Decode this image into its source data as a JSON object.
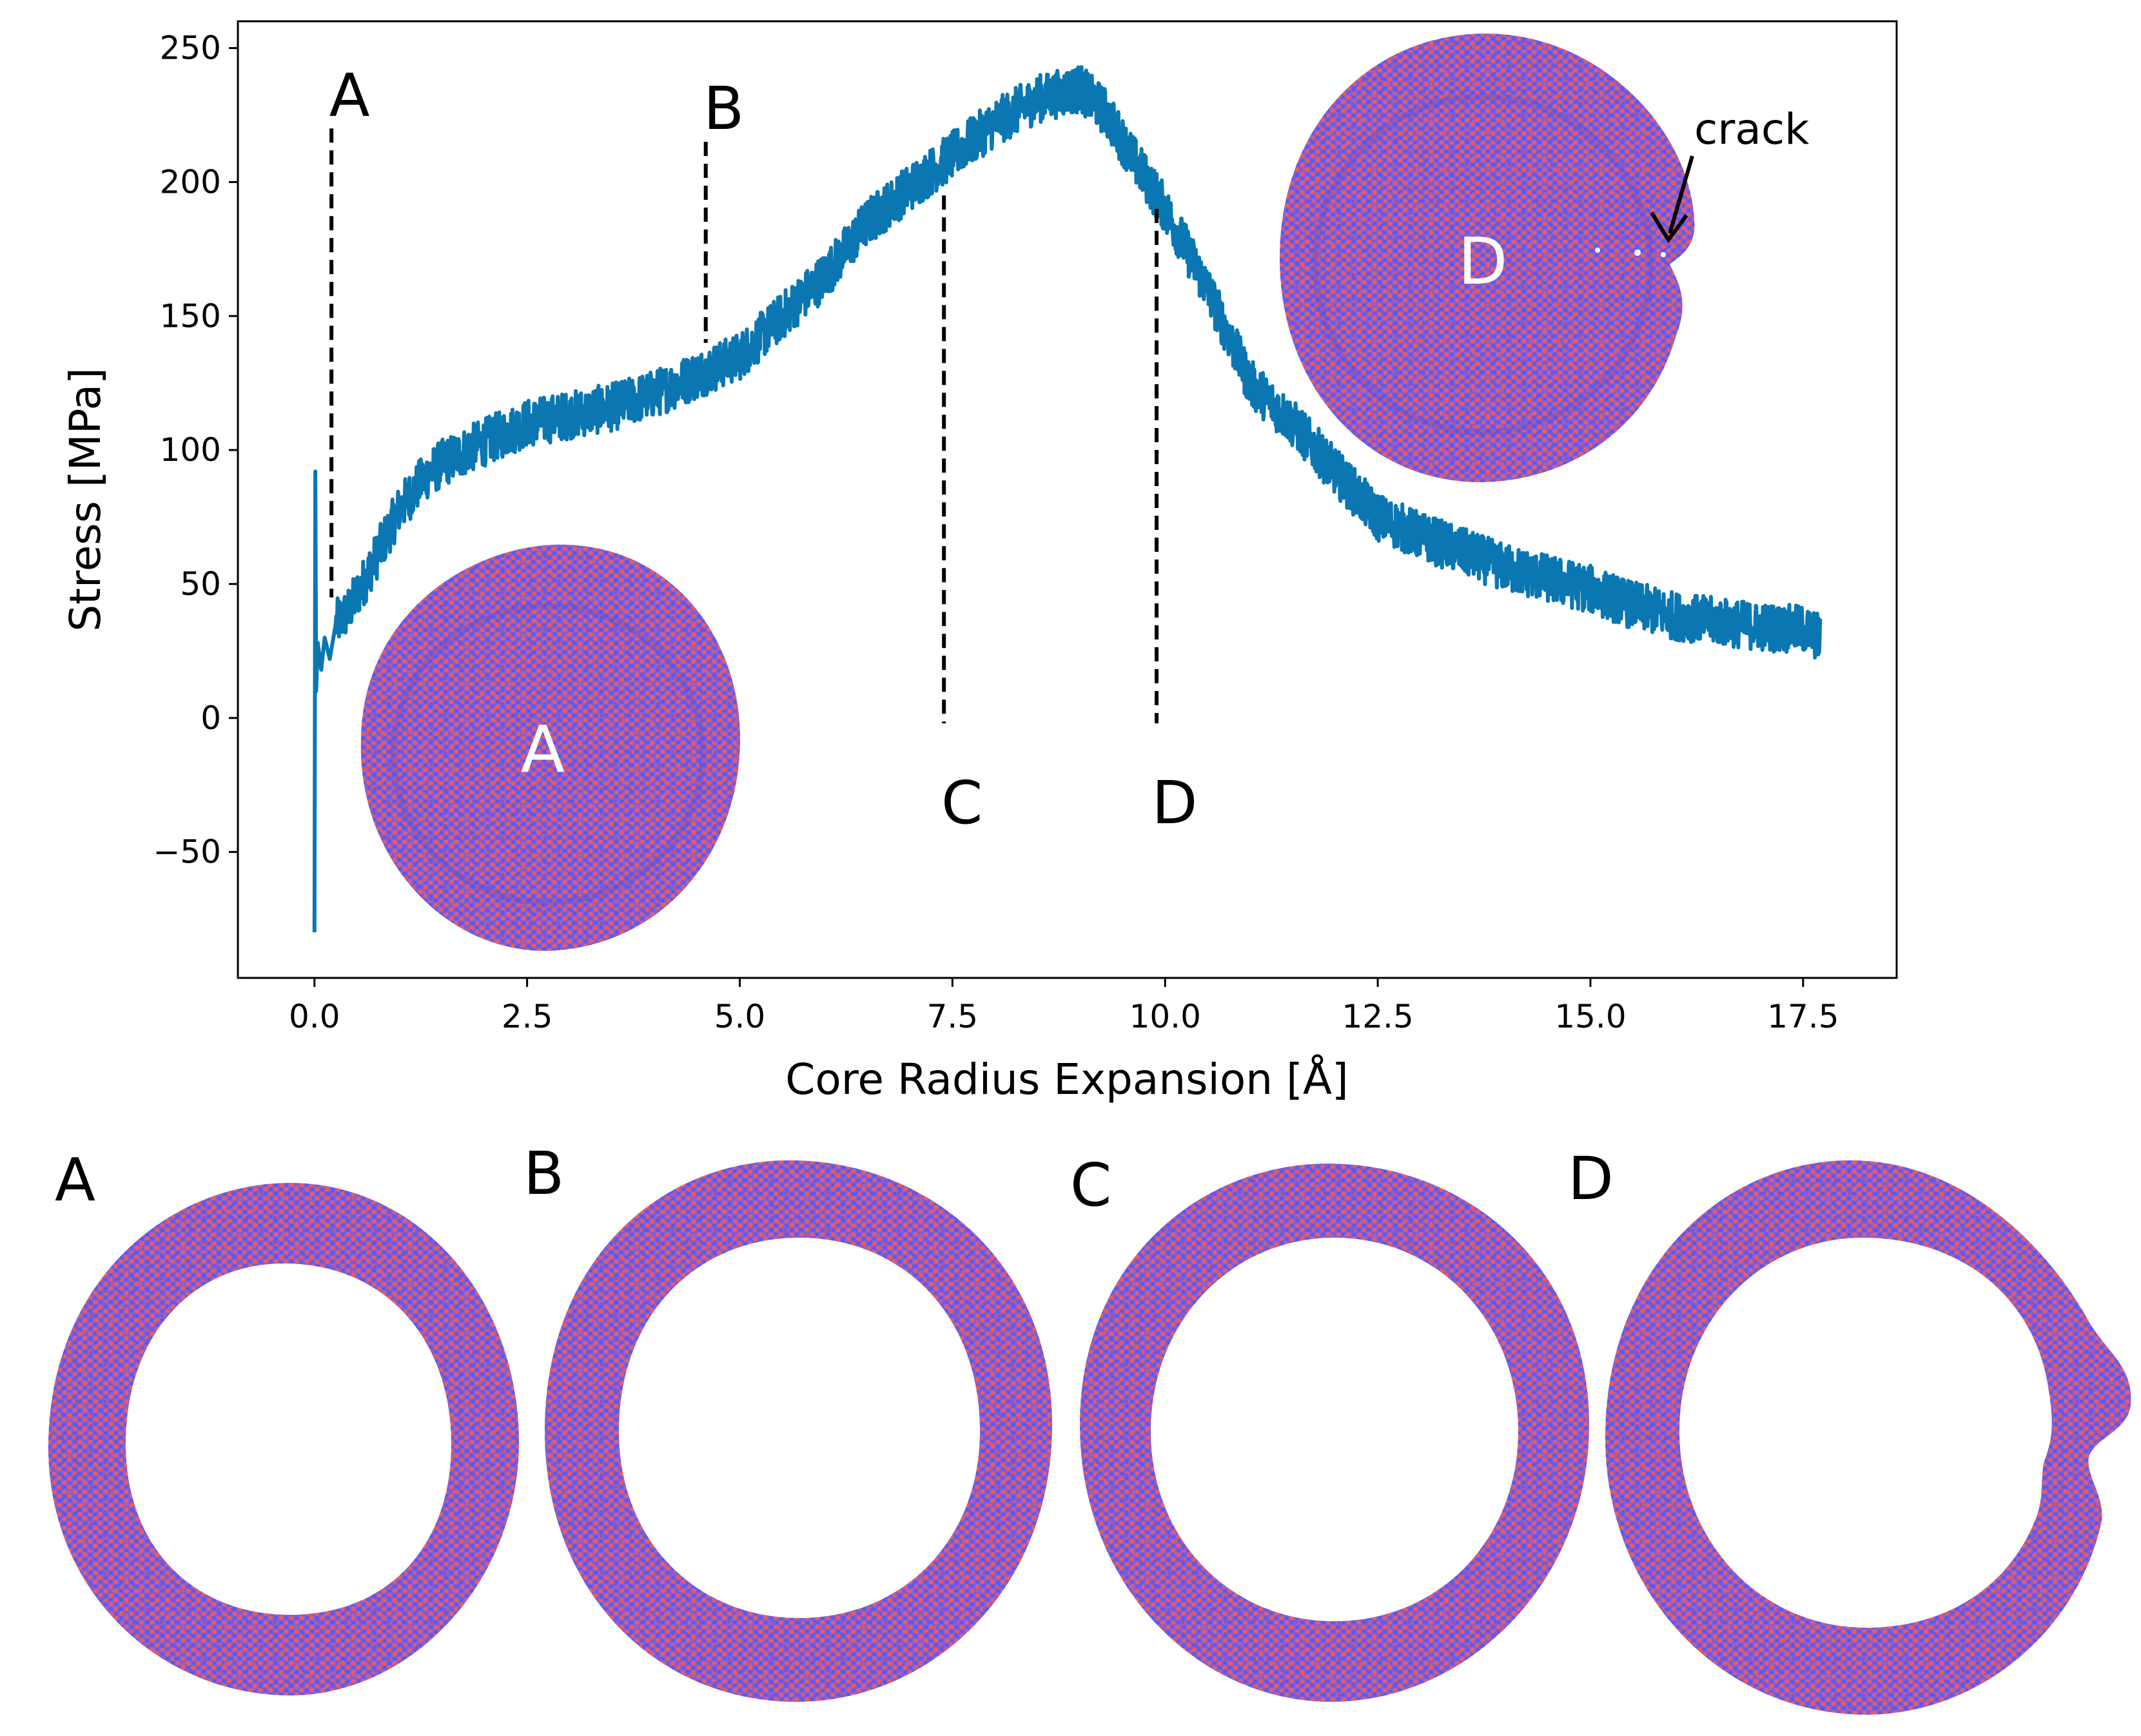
{
  "chart_data": {
    "type": "line",
    "title": "",
    "xlabel": "Core Radius Expansion [Å]",
    "ylabel": "Stress [MPa]",
    "xlim": [
      -0.9,
      18.6
    ],
    "ylim": [
      -97,
      260
    ],
    "xticks": [
      0.0,
      2.5,
      5.0,
      7.5,
      10.0,
      12.5,
      15.0,
      17.5
    ],
    "xtick_labels": [
      "0.0",
      "2.5",
      "5.0",
      "7.5",
      "10.0",
      "12.5",
      "15.0",
      "17.5"
    ],
    "yticks": [
      -50,
      0,
      50,
      100,
      150,
      200,
      250
    ],
    "ytick_labels": [
      "−50",
      "0",
      "50",
      "100",
      "150",
      "200",
      "250"
    ],
    "grid": false,
    "series": [
      {
        "name": "stress",
        "color": "#0a77b3",
        "points": [
          [
            0.0,
            -80
          ],
          [
            0.01,
            92
          ],
          [
            0.02,
            10
          ],
          [
            0.04,
            28
          ],
          [
            0.08,
            18
          ],
          [
            0.12,
            30
          ],
          [
            0.18,
            22
          ],
          [
            0.25,
            35
          ],
          [
            0.4,
            40
          ],
          [
            0.6,
            52
          ],
          [
            0.8,
            65
          ],
          [
            1.0,
            78
          ],
          [
            1.3,
            90
          ],
          [
            1.5,
            95
          ],
          [
            1.8,
            100
          ],
          [
            2.0,
            103
          ],
          [
            2.5,
            110
          ],
          [
            3.0,
            113
          ],
          [
            3.5,
            116
          ],
          [
            4.0,
            121
          ],
          [
            4.5,
            128
          ],
          [
            5.0,
            135
          ],
          [
            5.5,
            150
          ],
          [
            6.0,
            165
          ],
          [
            6.5,
            185
          ],
          [
            7.0,
            198
          ],
          [
            7.5,
            210
          ],
          [
            8.0,
            222
          ],
          [
            8.5,
            231
          ],
          [
            9.0,
            235
          ],
          [
            9.3,
            226
          ],
          [
            9.6,
            210
          ],
          [
            10.0,
            190
          ],
          [
            10.5,
            160
          ],
          [
            11.0,
            125
          ],
          [
            11.5,
            110
          ],
          [
            12.0,
            92
          ],
          [
            12.5,
            75
          ],
          [
            13.0,
            68
          ],
          [
            13.5,
            62
          ],
          [
            14.0,
            56
          ],
          [
            14.5,
            52
          ],
          [
            15.0,
            48
          ],
          [
            15.5,
            42
          ],
          [
            16.0,
            38
          ],
          [
            16.5,
            36
          ],
          [
            17.0,
            34
          ],
          [
            17.5,
            33
          ],
          [
            17.7,
            30
          ]
        ],
        "noise_amplitude": 9
      }
    ],
    "annotations": [
      {
        "label": "A",
        "x": 0.2,
        "y_top": 220,
        "y_bottom": 45
      },
      {
        "label": "B",
        "x": 4.6,
        "y_top": 215,
        "y_bottom": 140
      },
      {
        "label": "C",
        "x": 7.4,
        "y_top": 195,
        "y_bottom": -2
      },
      {
        "label": "D",
        "x": 9.9,
        "y_top": 190,
        "y_bottom": -2
      }
    ],
    "inset_labels": [
      "A",
      "D"
    ],
    "crack_label": "crack"
  },
  "panels": {
    "labels": [
      "A",
      "B",
      "C",
      "D"
    ]
  },
  "colors": {
    "line": "#0a77b3",
    "atom_red": "#ef5a5a",
    "atom_blue": "#6a5ee8",
    "atom_mix": "#9b5cc8"
  }
}
